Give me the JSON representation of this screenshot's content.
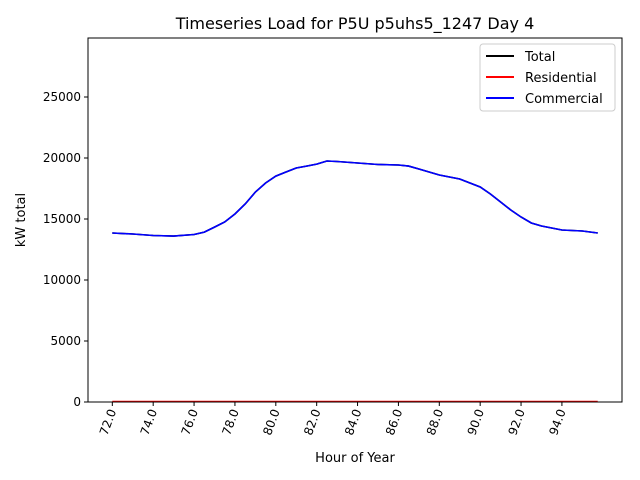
{
  "chart_data": {
    "type": "line",
    "title": "Timeseries Load for P5U p5uhs5_1247  Day 4",
    "xlabel": "Hour of Year",
    "ylabel": "kW total",
    "xlim": [
      70.81,
      96.94
    ],
    "ylim": [
      0,
      29836
    ],
    "grid": false,
    "legend_position": "top-right",
    "x_ticks": [
      72,
      74,
      76,
      78,
      80,
      82,
      84,
      86,
      88,
      90,
      92,
      94
    ],
    "x_tick_labels": [
      "72.0",
      "74.0",
      "76.0",
      "78.0",
      "80.0",
      "82.0",
      "84.0",
      "86.0",
      "88.0",
      "90.0",
      "92.0",
      "94.0"
    ],
    "y_ticks": [
      0,
      5000,
      10000,
      15000,
      20000,
      25000
    ],
    "y_tick_labels": [
      "0",
      "5000",
      "10000",
      "15000",
      "20000",
      "25000"
    ],
    "x": [
      72,
      73,
      74,
      75,
      76,
      76.5,
      77,
      77.5,
      78,
      78.5,
      79,
      79.5,
      80,
      80.5,
      81,
      81.5,
      82,
      82.5,
      83,
      84,
      85,
      86,
      86.5,
      87,
      88,
      89,
      90,
      90.5,
      91,
      91.5,
      92,
      92.5,
      93,
      94,
      95,
      95.75
    ],
    "series": [
      {
        "name": "Total",
        "color": "#000000",
        "values": [
          13850,
          13770,
          13650,
          13600,
          13730,
          13930,
          14340,
          14750,
          15410,
          16230,
          17210,
          17950,
          18520,
          18850,
          19180,
          19340,
          19500,
          19750,
          19710,
          19590,
          19470,
          19430,
          19340,
          19100,
          18610,
          18280,
          17620,
          17050,
          16390,
          15740,
          15160,
          14670,
          14430,
          14100,
          14020,
          13850
        ]
      },
      {
        "name": "Residential",
        "color": "#ff0000",
        "values": [
          30,
          30,
          30,
          30,
          30,
          30,
          30,
          30,
          30,
          30,
          30,
          30,
          30,
          30,
          30,
          30,
          30,
          30,
          30,
          30,
          30,
          30,
          30,
          30,
          30,
          30,
          30,
          30,
          30,
          30,
          30,
          30,
          30,
          30,
          30,
          30
        ]
      },
      {
        "name": "Commercial",
        "color": "#0000ff",
        "values": [
          13850,
          13770,
          13650,
          13600,
          13730,
          13930,
          14340,
          14750,
          15410,
          16230,
          17210,
          17950,
          18520,
          18850,
          19180,
          19340,
          19500,
          19750,
          19710,
          19590,
          19470,
          19430,
          19340,
          19100,
          18610,
          18280,
          17620,
          17050,
          16390,
          15740,
          15160,
          14670,
          14430,
          14100,
          14020,
          13850
        ]
      }
    ]
  }
}
